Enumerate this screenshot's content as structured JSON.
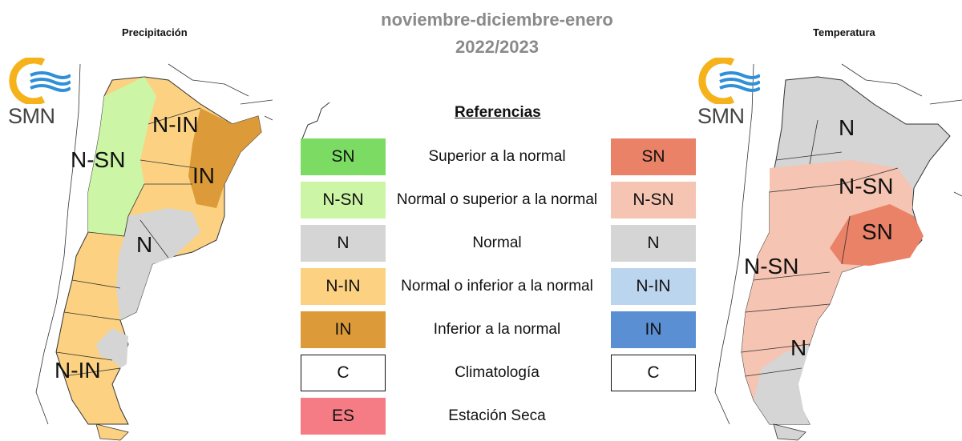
{
  "header": {
    "period": "noviembre-diciembre-enero",
    "year": "2022/2023"
  },
  "maps": {
    "precip_title": "Precipitación",
    "temp_title": "Temperatura",
    "logo_text": "SMN"
  },
  "precip_labels": [
    "N-IN",
    "N-SN",
    "IN",
    "N",
    "N-IN"
  ],
  "temp_labels": [
    "N",
    "N-SN",
    "SN",
    "N-SN",
    "N"
  ],
  "legend": {
    "title": "Referencias",
    "rows": [
      {
        "left": "SN",
        "desc": "Superior a la normal",
        "right": "SN",
        "left_color": "#7cdb63",
        "right_color": "#ea8268"
      },
      {
        "left": "N-SN",
        "desc": "Normal o superior a la normal",
        "right": "N-SN",
        "left_color": "#ccf5a6",
        "right_color": "#f5c4b2"
      },
      {
        "left": "N",
        "desc": "Normal",
        "right": "N",
        "left_color": "#d5d5d5",
        "right_color": "#d5d5d5"
      },
      {
        "left": "N-IN",
        "desc": "Normal o inferior a la normal",
        "right": "N-IN",
        "left_color": "#fcd282",
        "right_color": "#bcd5ee"
      },
      {
        "left": "IN",
        "desc": "Inferior a la normal",
        "right": "IN",
        "left_color": "#dc9a38",
        "right_color": "#5b8fd4"
      },
      {
        "left": "C",
        "desc": "Climatología",
        "right": "C",
        "left_color": "#ffffff",
        "right_color": "#ffffff"
      },
      {
        "left": "ES",
        "desc": "Estación Seca",
        "left_color": "#f57b84"
      }
    ]
  }
}
